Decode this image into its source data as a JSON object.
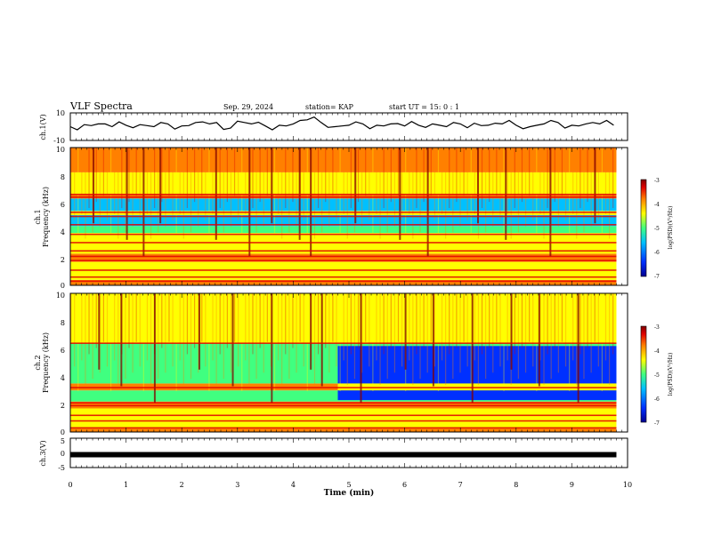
{
  "header": {
    "title": "VLF Spectra",
    "date": "Sep. 29, 2024",
    "station": "station= KAP",
    "start": "start  UT  =   15: 0  : 1"
  },
  "colors": {
    "colormap": [
      "#00008f",
      "#0030ff",
      "#00c0ff",
      "#40ff80",
      "#ffff00",
      "#ff8000",
      "#e00000",
      "#800000"
    ],
    "trace": "#000000"
  },
  "chart_data": [
    {
      "type": "line",
      "panel": "ch1-waveform",
      "ylabel": "ch.1(V)",
      "ylim": [
        -10,
        10
      ],
      "yticks": [
        "10",
        "-10"
      ],
      "xlim": [
        0,
        10
      ],
      "series": [
        {
          "x": [
            0,
            0.25,
            0.5,
            0.75,
            1.0,
            1.25,
            1.5,
            1.75,
            2.0,
            2.25,
            2.5,
            2.75,
            3.0,
            3.25,
            3.5,
            3.75,
            4.0,
            4.25,
            4.5,
            4.75,
            5.0,
            5.25,
            5.5,
            5.75,
            6.0,
            6.25,
            6.5,
            6.75,
            7.0,
            7.25,
            7.5,
            7.75,
            8.0,
            8.25,
            8.5,
            8.75,
            9.0,
            9.25,
            9.5,
            9.75
          ],
          "y": [
            0,
            1.5,
            2,
            0,
            1,
            1.5,
            0,
            2,
            0.5,
            3,
            2,
            -2,
            4,
            2,
            0.5,
            1,
            2,
            5,
            3,
            0,
            1,
            2,
            1,
            2,
            0.5,
            1,
            2,
            0,
            2,
            2.5,
            1,
            2,
            1,
            0,
            2,
            3,
            1,
            2,
            2,
            1
          ]
        }
      ]
    },
    {
      "type": "heatmap",
      "panel": "ch2-spectrogram",
      "ylabel": "ch.1\nFrequency (kHz)",
      "ylim": [
        0,
        10
      ],
      "yticks": [
        "0",
        "2",
        "4",
        "6",
        "8",
        "10"
      ],
      "xlim": [
        0,
        9.8
      ],
      "colorbar": {
        "label": "log(PSD)(V²/Hz)",
        "range": [
          -7,
          -3
        ],
        "ticks": [
          "-3",
          "-4",
          "-5",
          "-6",
          "-7"
        ]
      },
      "background_band": {
        "from_khz": 0,
        "to_khz": 10,
        "level": -5.2
      },
      "bands": [
        {
          "from_khz": 0.0,
          "to_khz": 0.4,
          "level": -4.0
        },
        {
          "from_khz": 0.4,
          "to_khz": 1.7,
          "level": -5.0
        },
        {
          "from_khz": 1.7,
          "to_khz": 2.3,
          "level": -4.2
        },
        {
          "from_khz": 2.3,
          "to_khz": 3.0,
          "level": -5.0
        },
        {
          "from_khz": 3.0,
          "to_khz": 3.8,
          "level": -4.6
        },
        {
          "from_khz": 3.8,
          "to_khz": 4.3,
          "level": -5.2
        },
        {
          "from_khz": 4.3,
          "to_khz": 5.1,
          "level": -5.8
        },
        {
          "from_khz": 5.1,
          "to_khz": 5.4,
          "level": -5.0
        },
        {
          "from_khz": 5.4,
          "to_khz": 6.3,
          "level": -6.1
        },
        {
          "from_khz": 6.3,
          "to_khz": 6.6,
          "level": -4.3
        },
        {
          "from_khz": 6.6,
          "to_khz": 8.2,
          "level": -4.7
        },
        {
          "from_khz": 8.2,
          "to_khz": 10.0,
          "level": -4.3
        }
      ],
      "lines_khz": [
        0.3,
        0.6,
        1.1,
        1.8,
        2.1,
        2.5,
        3.1,
        3.7,
        4.4,
        5.0,
        5.3,
        6.4,
        6.6
      ],
      "bursts_min": [
        0.4,
        1.0,
        1.3,
        1.6,
        2.6,
        3.2,
        3.6,
        4.1,
        4.3,
        5.1,
        5.9,
        6.4,
        7.3,
        7.8,
        8.6,
        9.4
      ],
      "xticks": []
    },
    {
      "type": "heatmap",
      "panel": "ch3-spectrogram",
      "ylabel": "ch.2\nFrequency (kHz)",
      "ylim": [
        0,
        10
      ],
      "yticks": [
        "0",
        "2",
        "4",
        "6",
        "8",
        "10"
      ],
      "xlim": [
        0,
        9.8
      ],
      "colorbar": {
        "label": "log(PSD)(V²/Hz)",
        "range": [
          -7,
          -3
        ],
        "ticks": [
          "-3",
          "-4",
          "-5",
          "-6",
          "-7"
        ]
      },
      "bands": [
        {
          "from_khz": 0.0,
          "to_khz": 0.3,
          "level": -3.9
        },
        {
          "from_khz": 0.3,
          "to_khz": 1.7,
          "level": -5.0
        },
        {
          "from_khz": 1.7,
          "to_khz": 2.2,
          "level": -4.3
        },
        {
          "from_khz": 2.2,
          "to_khz": 3.0,
          "level": -5.1
        },
        {
          "from_khz": 3.0,
          "to_khz": 3.5,
          "level": -4.4
        },
        {
          "from_khz": 3.5,
          "to_khz": 6.4,
          "level": -5.1
        },
        {
          "from_khz": 6.4,
          "to_khz": 10.0,
          "level": -4.8
        }
      ],
      "late_change": {
        "start_min": 4.8,
        "from_khz": 2.3,
        "to_khz": 6.2,
        "level": -6.2,
        "gap_from_khz": 3.0,
        "gap_to_khz": 3.5
      },
      "lines_khz": [
        0.3,
        0.8,
        1.2,
        1.9,
        2.1,
        3.2,
        6.4
      ],
      "bursts_min": [
        0.5,
        0.9,
        1.5,
        2.3,
        2.9,
        3.6,
        4.3,
        4.5,
        5.2,
        6.0,
        6.5,
        7.2,
        7.9,
        8.4,
        9.1
      ]
    },
    {
      "type": "line",
      "panel": "ch3-waveform",
      "ylabel": "ch.3(V)",
      "ylim": [
        -5,
        5
      ],
      "yticks": [
        "5",
        "0",
        "-5"
      ],
      "xlim": [
        0,
        10
      ],
      "xticks": [
        "0",
        "1",
        "2",
        "3",
        "4",
        "5",
        "6",
        "7",
        "8",
        "9",
        "10"
      ],
      "xlabel": "Time (min)",
      "series": [
        {
          "x": [
            0,
            9.8
          ],
          "y": [
            0,
            0
          ]
        }
      ]
    }
  ]
}
